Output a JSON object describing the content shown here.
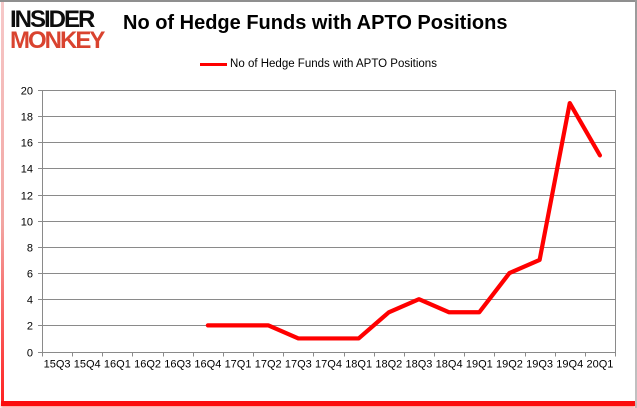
{
  "branding": {
    "logo_line1": "INSIDER",
    "logo_line2": "MONKEY"
  },
  "header": {
    "title": "No of Hedge Funds with APTO Positions"
  },
  "legend": {
    "label": "No of Hedge Funds with APTO Positions"
  },
  "chart_data": {
    "type": "line",
    "title": "No of Hedge Funds with APTO Positions",
    "categories": [
      "15Q3",
      "15Q4",
      "16Q1",
      "16Q2",
      "16Q3",
      "16Q4",
      "17Q1",
      "17Q2",
      "17Q3",
      "17Q4",
      "18Q1",
      "18Q2",
      "18Q3",
      "18Q4",
      "19Q1",
      "19Q2",
      "19Q3",
      "19Q4",
      "20Q1"
    ],
    "series": [
      {
        "name": "No of Hedge Funds with APTO Positions",
        "color": "#ff0000",
        "values": [
          null,
          null,
          null,
          null,
          null,
          2,
          2,
          2,
          1,
          1,
          1,
          3,
          4,
          3,
          3,
          6,
          7,
          19,
          15
        ]
      }
    ],
    "ylim": [
      0,
      20
    ],
    "ytick_step": 2,
    "yticks": [
      0,
      2,
      4,
      6,
      8,
      10,
      12,
      14,
      16,
      18,
      20
    ],
    "grid": true,
    "legend_position": "top-center",
    "xlabel": "",
    "ylabel": ""
  },
  "colors": {
    "line_red": "#ff0000",
    "logo_red": "#d9432f",
    "grid_gray": "#8a8a8a",
    "frame_red": "#fb0d0d",
    "text_black": "#000000"
  }
}
